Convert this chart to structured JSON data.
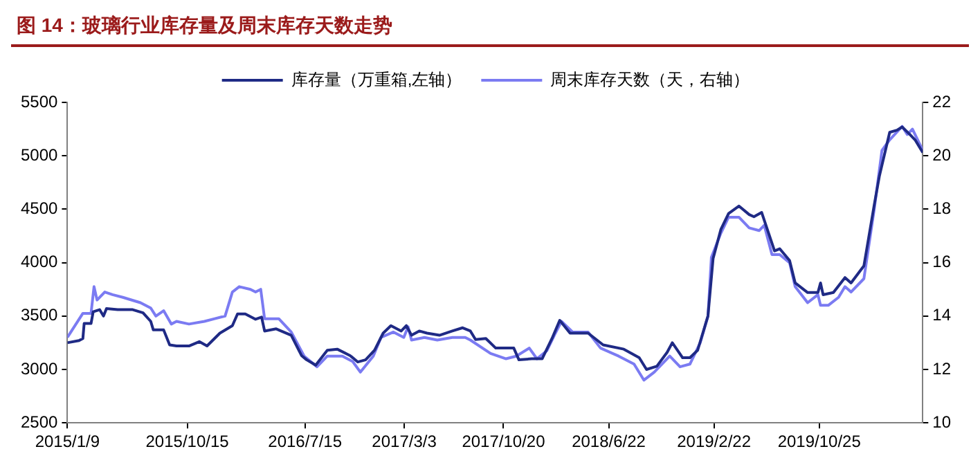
{
  "chart_data": {
    "type": "line",
    "title": "图 14：玻璃行业库存量及周末库存天数走势",
    "xlim": [
      "2015-01-09",
      "2020-06-22"
    ],
    "xticks": [
      {
        "value": "2015-01-09",
        "label": "2015/1/9"
      },
      {
        "value": "2015-10-15",
        "label": "2015/10/15"
      },
      {
        "value": "2016-07-15",
        "label": "2016/7/15"
      },
      {
        "value": "2017-03-03",
        "label": "2017/3/3"
      },
      {
        "value": "2017-10-20",
        "label": "2017/10/20"
      },
      {
        "value": "2018-06-22",
        "label": "2018/6/22"
      },
      {
        "value": "2019-02-22",
        "label": "2019/2/22"
      },
      {
        "value": "2019-10-25",
        "label": "2019/10/25"
      }
    ],
    "ylim": [
      2500,
      5500
    ],
    "yticks": [
      2500,
      3000,
      3500,
      4000,
      4500,
      5000,
      5500
    ],
    "y2lim": [
      10,
      22
    ],
    "y2ticks": [
      10,
      12,
      14,
      16,
      18,
      20,
      22
    ],
    "legend": "top",
    "grid": false,
    "marker": "none",
    "line_style": "solid",
    "series": [
      {
        "name": "库存量（万重箱,左轴）",
        "color": "#1f2a85",
        "x": [
          "2015-01-09",
          "2015-02-05",
          "2015-02-14",
          "2015-02-17",
          "2015-03-05",
          "2015-03-10",
          "2015-03-25",
          "2015-04-03",
          "2015-04-10",
          "2015-05-06",
          "2015-06-10",
          "2015-07-04",
          "2015-07-22",
          "2015-07-28",
          "2015-08-21",
          "2015-09-04",
          "2015-09-20",
          "2015-10-19",
          "2015-11-12",
          "2015-11-30",
          "2015-12-30",
          "2016-01-28",
          "2016-02-09",
          "2016-02-27",
          "2016-03-22",
          "2016-04-05",
          "2016-04-12",
          "2016-05-09",
          "2016-06-13",
          "2016-07-07",
          "2016-07-19",
          "2016-08-09",
          "2016-09-05",
          "2016-09-28",
          "2016-10-28",
          "2016-11-15",
          "2016-12-03",
          "2016-12-24",
          "2017-01-13",
          "2017-01-31",
          "2017-02-24",
          "2017-03-08",
          "2017-03-20",
          "2017-04-07",
          "2017-04-25",
          "2017-05-24",
          "2017-06-23",
          "2017-07-17",
          "2017-08-04",
          "2017-08-16",
          "2017-09-09",
          "2017-10-02",
          "2017-11-13",
          "2017-11-25",
          "2017-12-25",
          "2018-01-18",
          "2018-02-10",
          "2018-02-28",
          "2018-03-24",
          "2018-05-05",
          "2018-06-09",
          "2018-07-27",
          "2018-09-01",
          "2018-09-18",
          "2018-10-12",
          "2018-11-05",
          "2018-11-17",
          "2018-12-11",
          "2018-12-28",
          "2019-01-15",
          "2019-02-08",
          "2019-02-20",
          "2019-03-10",
          "2019-03-28",
          "2019-04-21",
          "2019-05-15",
          "2019-05-26",
          "2019-06-13",
          "2019-07-13",
          "2019-07-25",
          "2019-08-17",
          "2019-08-30",
          "2019-09-28",
          "2019-10-22",
          "2019-10-28",
          "2019-11-03",
          "2019-11-27",
          "2019-12-24",
          "2020-01-07",
          "2020-02-06",
          "2020-03-01",
          "2020-03-13",
          "2020-04-06",
          "2020-04-23",
          "2020-05-05",
          "2020-05-23",
          "2020-06-04",
          "2020-06-22"
        ],
        "values": [
          3250,
          3270,
          3290,
          3430,
          3430,
          3540,
          3560,
          3500,
          3570,
          3560,
          3560,
          3530,
          3450,
          3370,
          3370,
          3230,
          3220,
          3220,
          3260,
          3220,
          3340,
          3410,
          3520,
          3520,
          3470,
          3490,
          3360,
          3380,
          3320,
          3130,
          3090,
          3040,
          3180,
          3190,
          3130,
          3070,
          3090,
          3180,
          3340,
          3410,
          3360,
          3410,
          3320,
          3360,
          3340,
          3320,
          3360,
          3390,
          3360,
          3280,
          3290,
          3200,
          3200,
          3090,
          3100,
          3100,
          3290,
          3460,
          3340,
          3340,
          3230,
          3190,
          3110,
          3000,
          3030,
          3160,
          3250,
          3110,
          3110,
          3180,
          3500,
          4040,
          4310,
          4460,
          4530,
          4450,
          4430,
          4470,
          4110,
          4130,
          4020,
          3810,
          3720,
          3720,
          3810,
          3700,
          3720,
          3860,
          3810,
          3970,
          4540,
          4810,
          5220,
          5240,
          5270,
          5200,
          5150,
          5030
        ]
      },
      {
        "name": "周末库存天数（天，右轴）",
        "color": "#7b7bf2",
        "axis": "y2",
        "x": [
          "2015-01-09",
          "2015-02-14",
          "2015-03-05",
          "2015-03-12",
          "2015-03-19",
          "2015-04-06",
          "2015-04-24",
          "2015-05-18",
          "2015-06-28",
          "2015-07-22",
          "2015-08-03",
          "2015-08-21",
          "2015-09-08",
          "2015-09-20",
          "2015-10-19",
          "2015-11-24",
          "2015-12-18",
          "2016-01-11",
          "2016-01-28",
          "2016-02-13",
          "2016-03-10",
          "2016-03-22",
          "2016-04-03",
          "2016-04-12",
          "2016-05-15",
          "2016-06-13",
          "2016-07-13",
          "2016-08-12",
          "2016-09-05",
          "2016-10-10",
          "2016-11-03",
          "2016-11-21",
          "2016-12-21",
          "2017-01-08",
          "2017-02-06",
          "2017-03-02",
          "2017-03-12",
          "2017-03-20",
          "2017-04-19",
          "2017-05-19",
          "2017-06-23",
          "2017-07-23",
          "2017-08-04",
          "2017-09-20",
          "2017-10-26",
          "2017-11-19",
          "2017-12-19",
          "2018-01-06",
          "2018-01-29",
          "2018-02-16",
          "2018-03-04",
          "2018-03-30",
          "2018-05-05",
          "2018-06-03",
          "2018-07-15",
          "2018-08-20",
          "2018-09-12",
          "2018-10-06",
          "2018-11-11",
          "2018-12-05",
          "2018-12-28",
          "2019-01-21",
          "2019-02-08",
          "2019-02-16",
          "2019-03-10",
          "2019-03-28",
          "2019-04-21",
          "2019-05-15",
          "2019-06-07",
          "2019-06-19",
          "2019-07-07",
          "2019-07-25",
          "2019-08-17",
          "2019-08-30",
          "2019-09-28",
          "2019-10-22",
          "2019-10-28",
          "2019-11-15",
          "2019-12-09",
          "2019-12-24",
          "2020-01-07",
          "2020-02-06",
          "2020-03-01",
          "2020-03-19",
          "2020-04-06",
          "2020-05-05",
          "2020-05-17",
          "2020-05-29",
          "2020-06-22"
        ],
        "values": [
          13.2,
          14.1,
          14.1,
          15.1,
          14.6,
          14.9,
          14.8,
          14.7,
          14.5,
          14.3,
          14.0,
          14.2,
          13.7,
          13.8,
          13.7,
          13.8,
          13.9,
          14.0,
          14.9,
          15.1,
          15.0,
          14.9,
          15.0,
          13.9,
          13.9,
          13.4,
          12.5,
          12.1,
          12.5,
          12.5,
          12.3,
          11.9,
          12.5,
          13.2,
          13.4,
          13.2,
          13.6,
          13.1,
          13.2,
          13.1,
          13.2,
          13.2,
          13.1,
          12.6,
          12.4,
          12.5,
          12.8,
          12.4,
          12.7,
          13.3,
          13.8,
          13.4,
          13.4,
          12.8,
          12.5,
          12.2,
          11.6,
          11.9,
          12.5,
          12.1,
          12.2,
          13.0,
          14.0,
          16.2,
          17.1,
          17.7,
          17.7,
          17.3,
          17.2,
          17.4,
          16.3,
          16.3,
          16.0,
          15.1,
          14.5,
          14.8,
          14.4,
          14.4,
          14.7,
          15.1,
          14.9,
          15.4,
          18.0,
          20.2,
          20.6,
          21.1,
          20.8,
          21.0,
          20.2
        ]
      }
    ]
  }
}
